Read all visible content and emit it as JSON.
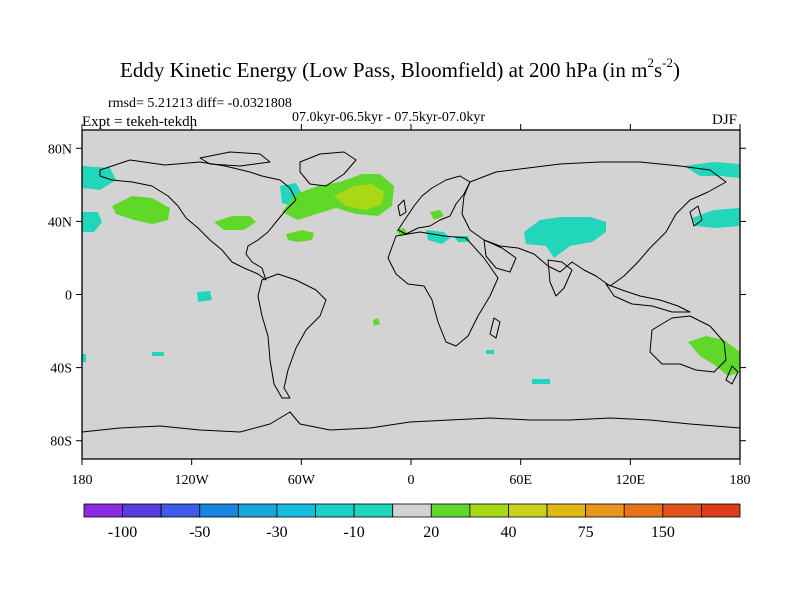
{
  "title": {
    "main": "Eddy Kinetic Energy (Low Pass, Bloomfield) at 200 hPa (in m",
    "exp1": "2",
    "mid": "s",
    "exp2": "-2",
    "close": ")"
  },
  "stats": "rmsd= 5.21213 diff= -0.0321808",
  "experiment": "Expt = tekeh-tekdh",
  "period": "07.0kyr-06.5kyr - 07.5kyr-07.0kyr",
  "season": "DJF",
  "axes": {
    "lat_ticks": [
      {
        "value": 80,
        "label": "80N"
      },
      {
        "value": 40,
        "label": "40N"
      },
      {
        "value": 0,
        "label": "0"
      },
      {
        "value": -40,
        "label": "40S"
      },
      {
        "value": -80,
        "label": "80S"
      }
    ],
    "lon_ticks": [
      {
        "value": -180,
        "label": "180"
      },
      {
        "value": -120,
        "label": "120W"
      },
      {
        "value": -60,
        "label": "60W"
      },
      {
        "value": 0,
        "label": "0"
      },
      {
        "value": 60,
        "label": "60E"
      },
      {
        "value": 120,
        "label": "120E"
      },
      {
        "value": 180,
        "label": "180"
      }
    ],
    "lon_range": [
      -180,
      180
    ],
    "lat_range": [
      -90,
      90
    ]
  },
  "colors": {
    "background_field": "#d3d3d3",
    "coast": "#000000",
    "neg_small": "#21d6bb",
    "pos_small": "#5fd82a",
    "pos_mid": "#a8d816"
  },
  "colorbar": {
    "colors": [
      "#8a2be2",
      "#5a3de0",
      "#3d5ce8",
      "#1a86e0",
      "#19a6dc",
      "#17bde0",
      "#1ad1c6",
      "#21d6bb",
      "#d3d3d3",
      "#5fd82a",
      "#a8d816",
      "#c8d21a",
      "#e0b812",
      "#e6961a",
      "#e6731a",
      "#e0521a",
      "#dd3c1a"
    ],
    "labels": [
      {
        "index": 1,
        "text": "-100"
      },
      {
        "index": 3,
        "text": "-50"
      },
      {
        "index": 5,
        "text": "-30"
      },
      {
        "index": 7,
        "text": "-10"
      },
      {
        "index": 9,
        "text": "20"
      },
      {
        "index": 11,
        "text": "40"
      },
      {
        "index": 13,
        "text": "75"
      },
      {
        "index": 15,
        "text": "150"
      }
    ]
  }
}
